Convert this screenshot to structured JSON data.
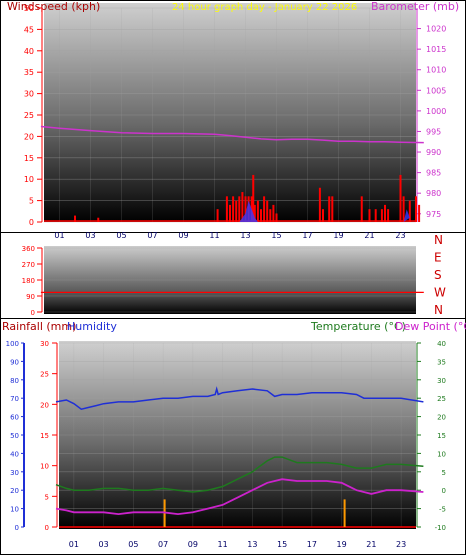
{
  "colors": {
    "wind": "#ff0000",
    "gust": "#ff0000",
    "barometer": "#cc33cc",
    "direction": "#ff0000",
    "rainfall": "#ff9900",
    "humidity": "#1f2fd6",
    "temperature": "#1e7a1e",
    "dewpoint": "#cc22cc",
    "title": "#ffff00"
  },
  "chart_data": [
    {
      "id": "wind-barometer",
      "type": "bar",
      "title": "24 hour graph day - January 22 2026",
      "left_axis_label": "Windspeed (kph)",
      "right_axis_label": "Barometer (mb)",
      "left_ticks": [
        "0",
        "5",
        "10",
        "15",
        "20",
        "25",
        "30",
        "35",
        "40",
        "45",
        "50"
      ],
      "right_ticks": [
        "975",
        "980",
        "985",
        "990",
        "995",
        "1000",
        "1005",
        "1010",
        "1015",
        "1020"
      ],
      "x_ticks": [
        "01",
        "03",
        "05",
        "07",
        "09",
        "11",
        "13",
        "15",
        "17",
        "19",
        "21",
        "23"
      ],
      "ylim_left": [
        0,
        50
      ],
      "ylim_right": [
        973,
        1025
      ],
      "xlim": [
        0,
        24
      ],
      "series": [
        {
          "name": "Windspeed (kph)",
          "kind": "bars",
          "points": [
            [
              2.0,
              1.5
            ],
            [
              3.5,
              1
            ],
            [
              11.2,
              3
            ],
            [
              11.8,
              6
            ],
            [
              12.0,
              4
            ],
            [
              12.2,
              6
            ],
            [
              12.4,
              5
            ],
            [
              12.6,
              6
            ],
            [
              12.8,
              7
            ],
            [
              13.0,
              6
            ],
            [
              13.2,
              6
            ],
            [
              13.4,
              6
            ],
            [
              13.5,
              11
            ],
            [
              13.6,
              4
            ],
            [
              13.8,
              5
            ],
            [
              14.0,
              3
            ],
            [
              14.2,
              6
            ],
            [
              14.4,
              5
            ],
            [
              14.6,
              3
            ],
            [
              14.8,
              4
            ],
            [
              15.0,
              2
            ],
            [
              17.8,
              8
            ],
            [
              18.0,
              3
            ],
            [
              18.4,
              6
            ],
            [
              18.6,
              6
            ],
            [
              20.5,
              6
            ],
            [
              21.0,
              3
            ],
            [
              21.4,
              3
            ],
            [
              21.8,
              3
            ],
            [
              22.0,
              4
            ],
            [
              22.2,
              3
            ],
            [
              23.0,
              11
            ],
            [
              23.2,
              6
            ],
            [
              23.6,
              5
            ],
            [
              24.0,
              6
            ],
            [
              24.2,
              4
            ]
          ]
        },
        {
          "name": "Wind gust",
          "kind": "area",
          "points": [
            [
              12.6,
              0
            ],
            [
              12.8,
              1
            ],
            [
              13.0,
              2
            ],
            [
              13.2,
              5
            ],
            [
              13.4,
              3
            ],
            [
              13.6,
              1
            ],
            [
              13.8,
              0
            ],
            [
              23.2,
              0
            ],
            [
              23.4,
              3
            ],
            [
              23.6,
              1
            ]
          ]
        },
        {
          "name": "Barometer (mb)",
          "kind": "line",
          "points": [
            [
              -0.2,
              996.2
            ],
            [
              1,
              995.8
            ],
            [
              3,
              995.2
            ],
            [
              5,
              994.7
            ],
            [
              7,
              994.5
            ],
            [
              9,
              994.5
            ],
            [
              11,
              994.3
            ],
            [
              12,
              994.0
            ],
            [
              13,
              993.6
            ],
            [
              14,
              993.2
            ],
            [
              15,
              993.0
            ],
            [
              16,
              993.1
            ],
            [
              17,
              993.1
            ],
            [
              18,
              992.9
            ],
            [
              19,
              992.6
            ],
            [
              20,
              992.6
            ],
            [
              21,
              992.5
            ],
            [
              22,
              992.5
            ],
            [
              23,
              992.4
            ],
            [
              24.5,
              992.3
            ]
          ]
        }
      ]
    },
    {
      "id": "wind-direction",
      "type": "line",
      "left_ticks": [
        "0",
        "90",
        "180",
        "270",
        "360"
      ],
      "right_labels": [
        "N",
        "W",
        "S",
        "E",
        "N"
      ],
      "ylim": [
        0,
        360
      ],
      "xlim": [
        0,
        24
      ],
      "series": [
        {
          "name": "Direction",
          "points": [
            [
              -0.2,
              110
            ],
            [
              24.5,
              110
            ]
          ]
        }
      ]
    },
    {
      "id": "temp-humidity-rain",
      "type": "line",
      "rain_axis_label": "Rainfall (mm)",
      "humidity_axis_label": "Humidity",
      "temp_axis_label": "Temperature (°C)",
      "dew_axis_label": "Dew Point (°C)",
      "humidity_ticks": [
        "0",
        "10",
        "20",
        "30",
        "40",
        "50",
        "60",
        "70",
        "80",
        "90",
        "100"
      ],
      "rain_ticks": [
        "0",
        "5",
        "10",
        "15",
        "20",
        "25",
        "30"
      ],
      "temp_ticks": [
        "-10",
        "-5",
        "0",
        "5",
        "10",
        "15",
        "20",
        "25",
        "30",
        "35",
        "40"
      ],
      "x_ticks": [
        "01",
        "03",
        "05",
        "07",
        "09",
        "11",
        "13",
        "15",
        "17",
        "19",
        "21",
        "23"
      ],
      "ylim_humidity": [
        0,
        100
      ],
      "ylim_rain": [
        0,
        30
      ],
      "ylim_temp": [
        -10,
        40
      ],
      "xlim": [
        0,
        24
      ],
      "series": [
        {
          "name": "Humidity",
          "axis": "humidity",
          "points": [
            [
              -0.2,
              68
            ],
            [
              0.5,
              69
            ],
            [
              1,
              67
            ],
            [
              1.5,
              64
            ],
            [
              2,
              65
            ],
            [
              2.5,
              66
            ],
            [
              3,
              67
            ],
            [
              4,
              68
            ],
            [
              5,
              68
            ],
            [
              6,
              69
            ],
            [
              7,
              70
            ],
            [
              8,
              70
            ],
            [
              9,
              71
            ],
            [
              10,
              71
            ],
            [
              10.5,
              72
            ],
            [
              10.6,
              75
            ],
            [
              10.7,
              72
            ],
            [
              11,
              73
            ],
            [
              12,
              74
            ],
            [
              13,
              75
            ],
            [
              14,
              74
            ],
            [
              14.5,
              71
            ],
            [
              15,
              72
            ],
            [
              16,
              72
            ],
            [
              17,
              73
            ],
            [
              18,
              73
            ],
            [
              19,
              73
            ],
            [
              20,
              72
            ],
            [
              20.5,
              70
            ],
            [
              21,
              70
            ],
            [
              22,
              70
            ],
            [
              23,
              70
            ],
            [
              24.5,
              68
            ]
          ]
        },
        {
          "name": "Temperature (°C)",
          "axis": "temp",
          "points": [
            [
              -0.2,
              1.5
            ],
            [
              0.5,
              0.5
            ],
            [
              1,
              0
            ],
            [
              2,
              0
            ],
            [
              3,
              0.5
            ],
            [
              4,
              0.5
            ],
            [
              5,
              0
            ],
            [
              6,
              0
            ],
            [
              7,
              0.5
            ],
            [
              8,
              0
            ],
            [
              9,
              -0.5
            ],
            [
              10,
              0
            ],
            [
              11,
              1
            ],
            [
              12,
              3
            ],
            [
              13,
              5
            ],
            [
              14,
              8
            ],
            [
              14.5,
              9
            ],
            [
              15,
              9
            ],
            [
              16,
              7.5
            ],
            [
              17,
              7.5
            ],
            [
              18,
              7.5
            ],
            [
              19,
              7
            ],
            [
              20,
              6
            ],
            [
              21,
              6
            ],
            [
              22,
              7
            ],
            [
              23,
              7
            ],
            [
              24.5,
              6.5
            ]
          ]
        },
        {
          "name": "Dew Point (°C)",
          "axis": "temp",
          "points": [
            [
              -0.2,
              -5
            ],
            [
              0.5,
              -5.5
            ],
            [
              1,
              -6
            ],
            [
              2,
              -6
            ],
            [
              3,
              -6
            ],
            [
              4,
              -6.5
            ],
            [
              5,
              -6
            ],
            [
              6,
              -6
            ],
            [
              7,
              -6
            ],
            [
              8,
              -6.5
            ],
            [
              9,
              -6
            ],
            [
              10,
              -5
            ],
            [
              11,
              -4
            ],
            [
              12,
              -2
            ],
            [
              13,
              0
            ],
            [
              14,
              2
            ],
            [
              14.5,
              2.5
            ],
            [
              15,
              3
            ],
            [
              16,
              2.5
            ],
            [
              17,
              2.5
            ],
            [
              18,
              2.5
            ],
            [
              19,
              2
            ],
            [
              20,
              0
            ],
            [
              21,
              -1
            ],
            [
              22,
              0
            ],
            [
              23,
              0
            ],
            [
              24.5,
              -0.5
            ]
          ]
        },
        {
          "name": "Rainfall (mm)",
          "axis": "rain",
          "kind": "bars",
          "points": [
            [
              7.1,
              4.5
            ],
            [
              19.2,
              4.5
            ]
          ]
        }
      ]
    }
  ]
}
